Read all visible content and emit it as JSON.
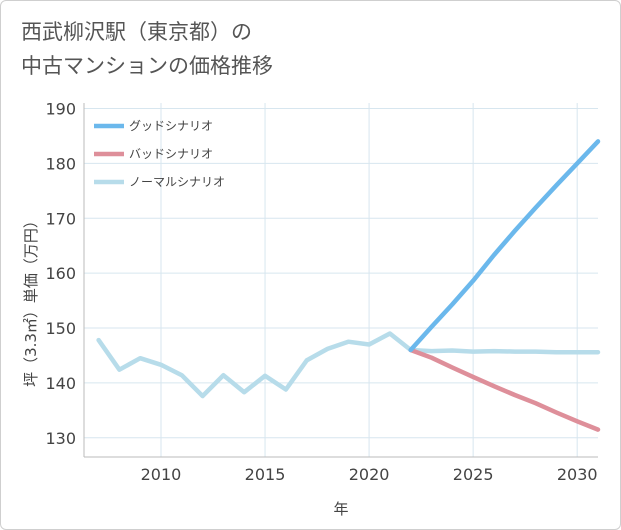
{
  "chart_data": {
    "type": "line",
    "title_lines": [
      "西武柳沢駅（東京都）の",
      "中古マンションの価格推移"
    ],
    "xlabel": "年",
    "ylabel": "坪（3.3㎡）単価（万円）",
    "xlim": [
      2006.3,
      2031
    ],
    "ylim": [
      126.5,
      191
    ],
    "x_ticks": [
      2010,
      2015,
      2020,
      2025,
      2030
    ],
    "y_ticks": [
      130,
      140,
      150,
      160,
      170,
      180,
      190
    ],
    "grid": true,
    "legend_position": "top-left",
    "series": [
      {
        "name": "グッドシナリオ",
        "color": "#6bb8ec",
        "x": [
          2022,
          2023,
          2024,
          2025,
          2026,
          2027,
          2028,
          2029,
          2030,
          2031
        ],
        "values": [
          146.0,
          150.2,
          154.3,
          158.6,
          163.3,
          167.7,
          171.9,
          176.0,
          180.0,
          184.0
        ]
      },
      {
        "name": "バッドシナリオ",
        "color": "#de8f9a",
        "x": [
          2022,
          2023,
          2024,
          2025,
          2026,
          2027,
          2028,
          2029,
          2030,
          2031
        ],
        "values": [
          146.0,
          144.6,
          142.8,
          141.1,
          139.4,
          137.8,
          136.3,
          134.6,
          133.0,
          131.5
        ]
      },
      {
        "name": "ノーマルシナリオ",
        "color": "#b7dcea",
        "x": [
          2007,
          2008,
          2009,
          2010,
          2011,
          2012,
          2013,
          2014,
          2015,
          2016,
          2017,
          2018,
          2019,
          2020,
          2021,
          2022,
          2023,
          2024,
          2025,
          2026,
          2027,
          2028,
          2029,
          2030,
          2031
        ],
        "values": [
          147.8,
          142.4,
          144.5,
          143.3,
          141.4,
          137.6,
          141.4,
          138.3,
          141.3,
          138.8,
          144.1,
          146.2,
          147.5,
          147.0,
          149.0,
          146.0,
          145.8,
          145.9,
          145.7,
          145.8,
          145.7,
          145.7,
          145.6,
          145.6,
          145.6
        ]
      }
    ]
  }
}
